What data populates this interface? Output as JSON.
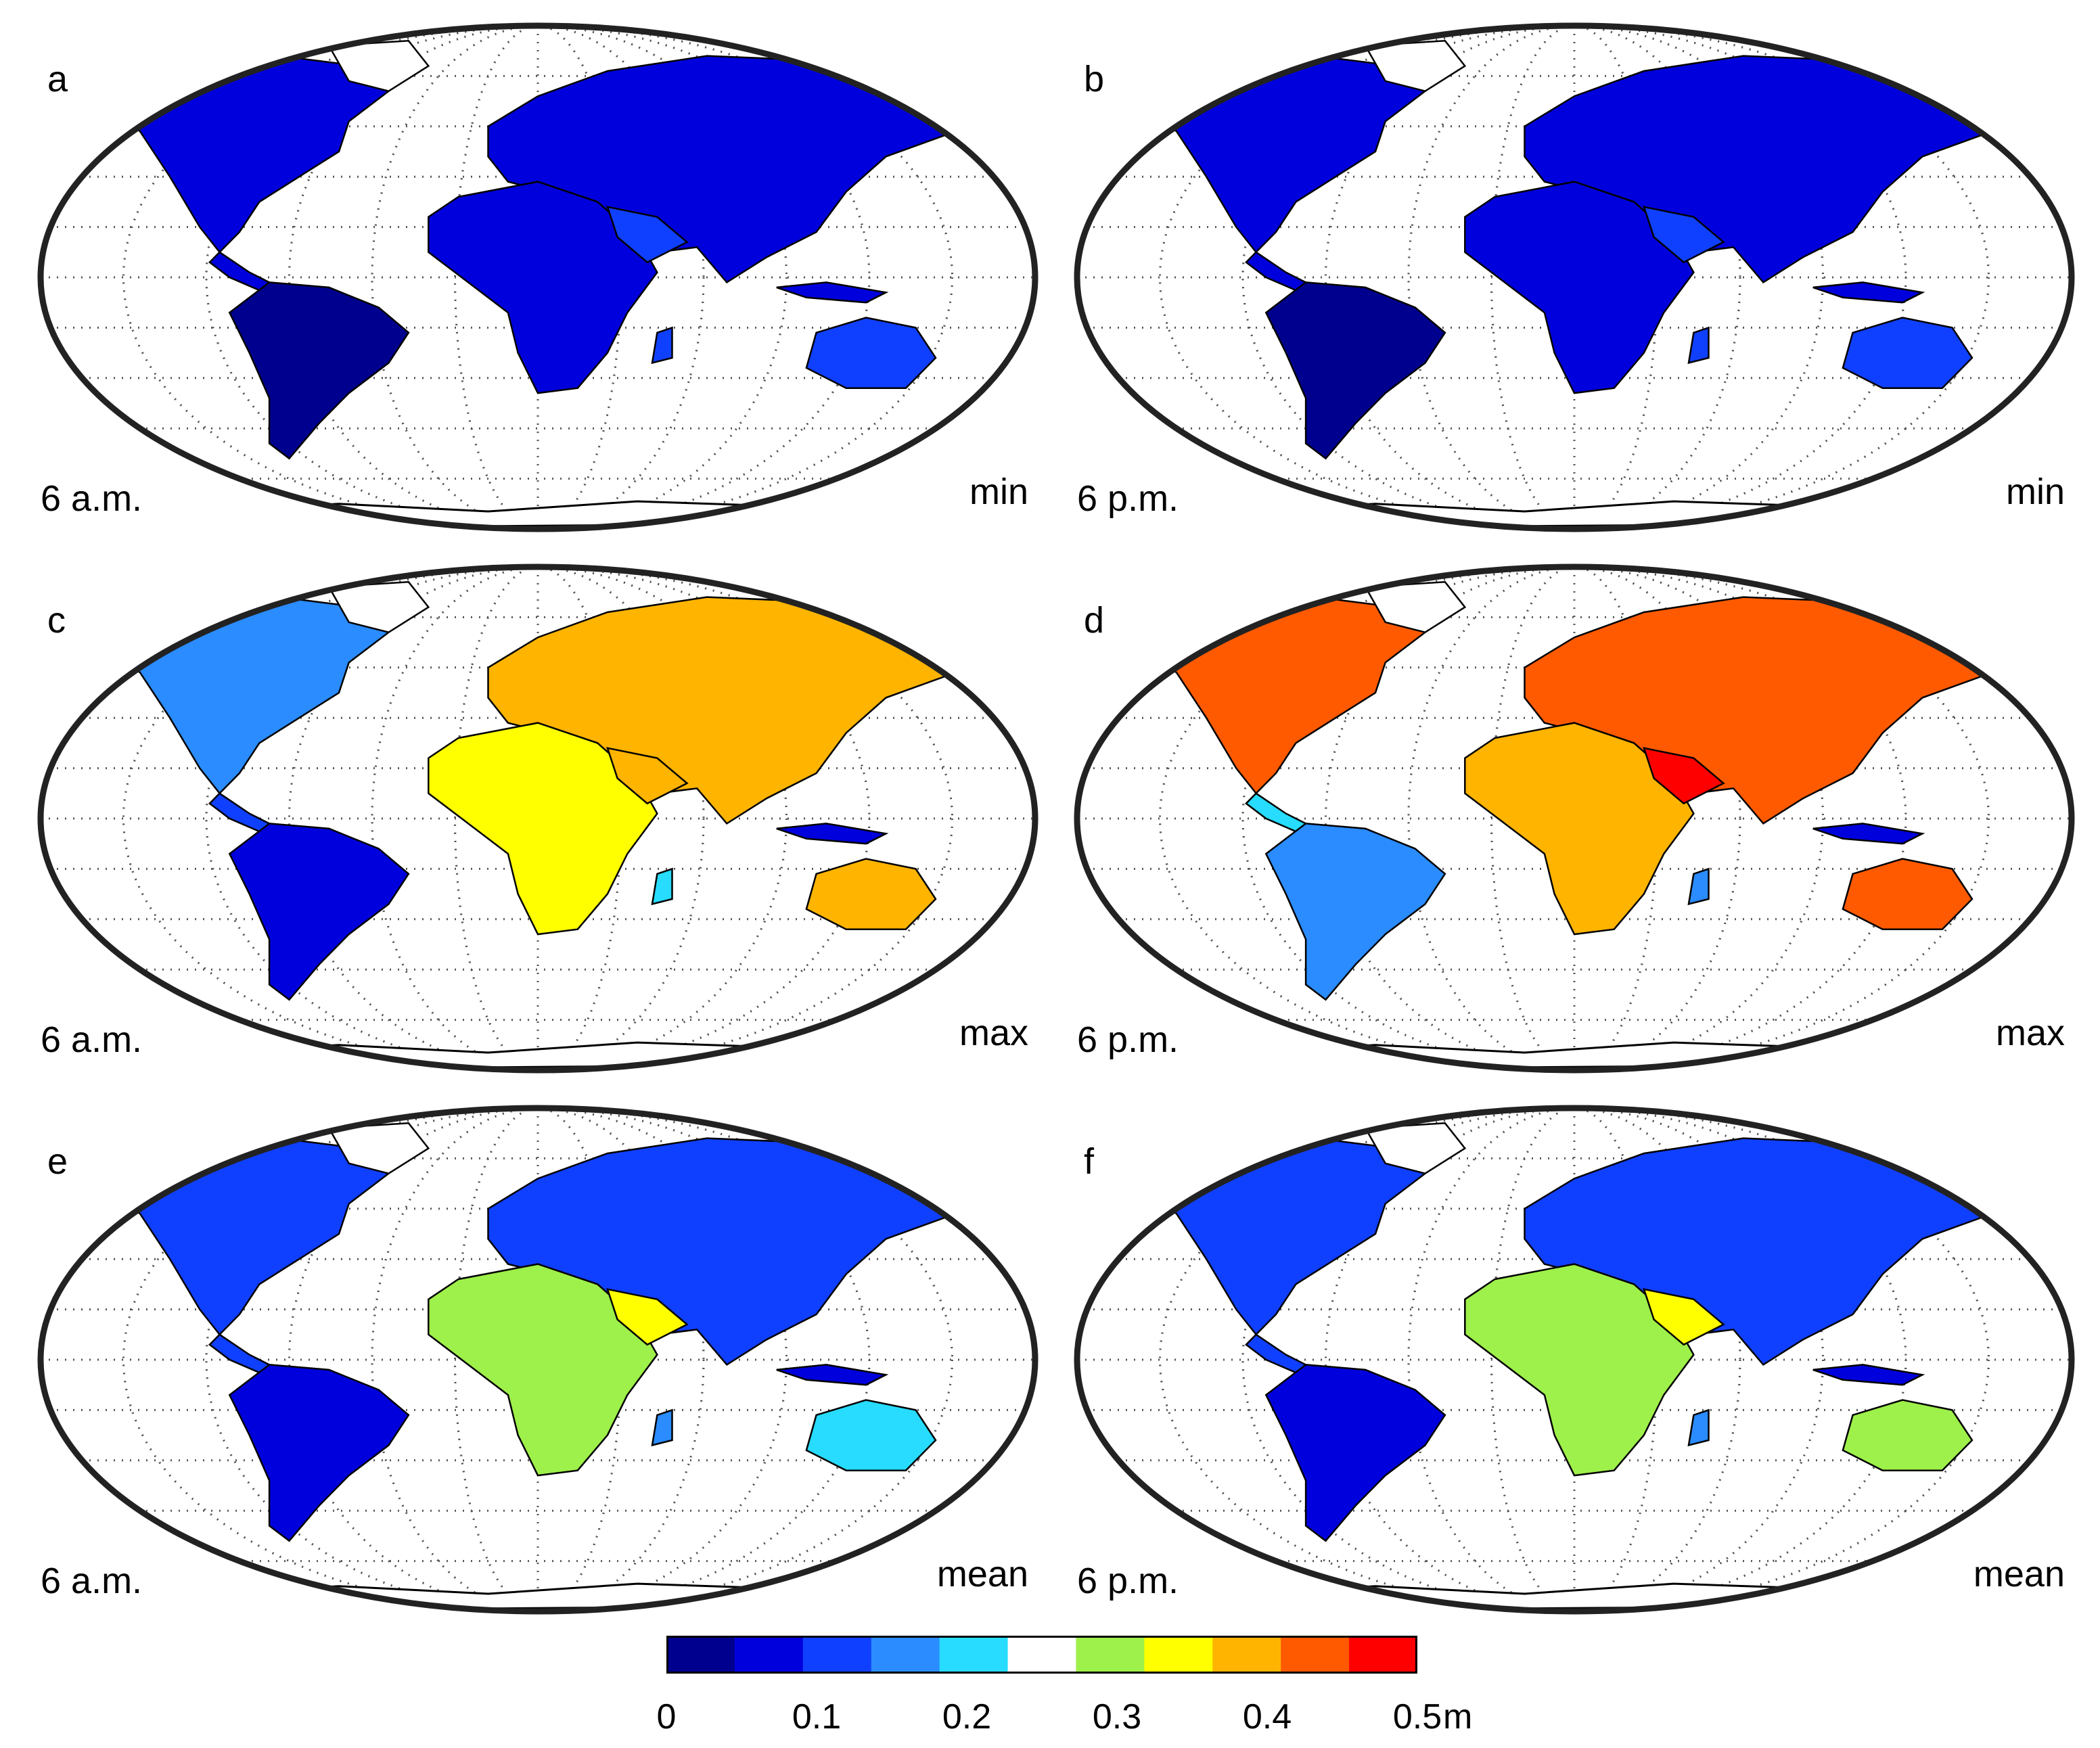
{
  "panels": [
    {
      "letter": "a",
      "time": "6 a.m.",
      "stat": "min"
    },
    {
      "letter": "b",
      "time": "6 p.m.",
      "stat": "min"
    },
    {
      "letter": "c",
      "time": "6 a.m.",
      "stat": "max"
    },
    {
      "letter": "d",
      "time": "6 p.m.",
      "stat": "max"
    },
    {
      "letter": "e",
      "time": "6 a.m.",
      "stat": "mean"
    },
    {
      "letter": "f",
      "time": "6 p.m.",
      "stat": "mean"
    }
  ],
  "colorbar": {
    "colors": [
      "#00008f",
      "#0000dd",
      "#1040ff",
      "#2a8cff",
      "#27dcff",
      "#ffffff",
      "#9ef04a",
      "#ffff00",
      "#ffb400",
      "#ff5a00",
      "#ff0000"
    ],
    "ticks": [
      "0",
      "0.1",
      "0.2",
      "0.3",
      "0.4",
      "0.5"
    ],
    "unit": "m",
    "range": [
      0,
      0.5
    ]
  },
  "map_palette": {
    "ocean": "#ffffff",
    "frame": "#222222",
    "graticule": "#555555"
  }
}
